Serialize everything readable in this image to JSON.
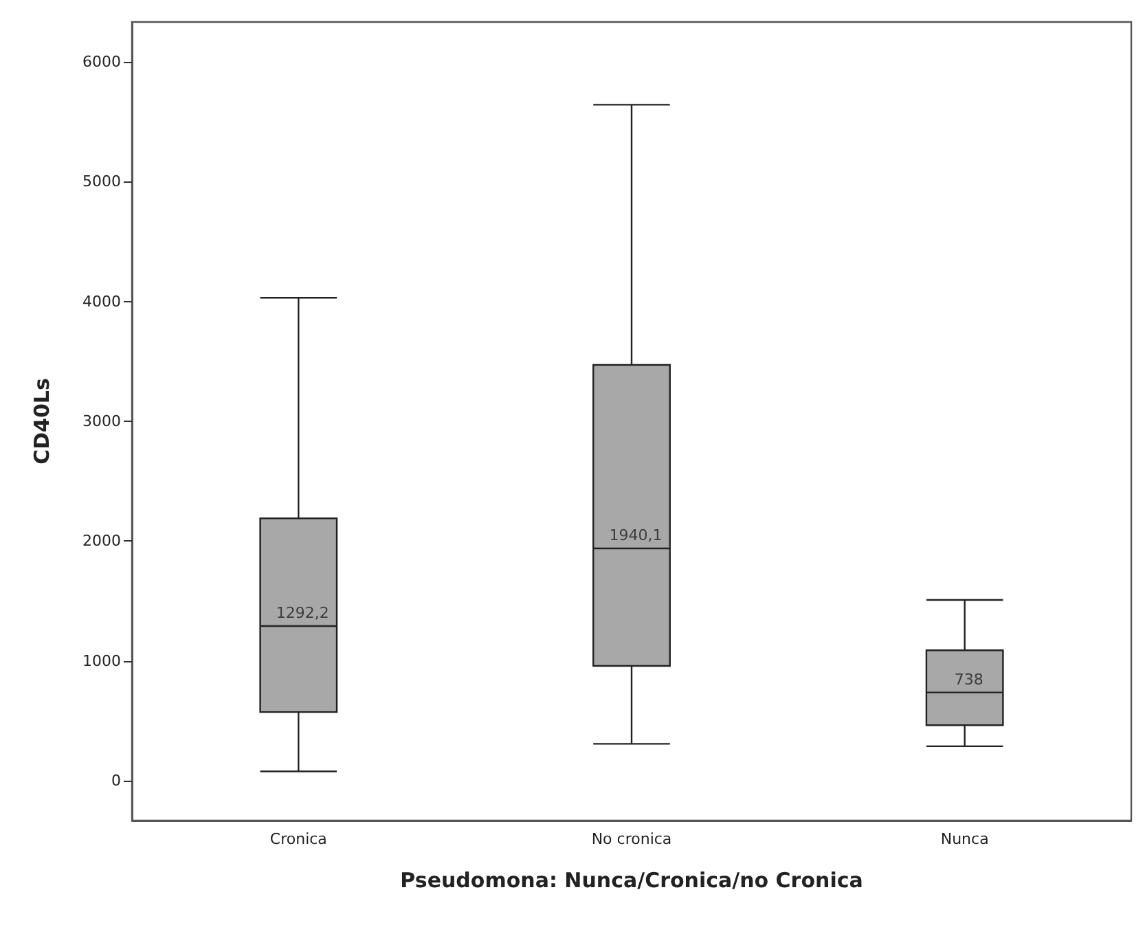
{
  "chart_data": {
    "type": "box",
    "xlabel": "Pseudomona: Nunca/Cronica/no Cronica",
    "ylabel": "CD40Ls",
    "categories": [
      "Cronica",
      "No cronica",
      "Nunca"
    ],
    "boxes": [
      {
        "low": 80,
        "q1": 575,
        "median": 1292.2,
        "q3": 2190,
        "high": 4030
      },
      {
        "low": 310,
        "q1": 960,
        "median": 1940.1,
        "q3": 3470,
        "high": 5640
      },
      {
        "low": 290,
        "q1": 465,
        "median": 738,
        "q3": 1090,
        "high": 1510
      }
    ],
    "color": "#a8a8a8",
    "ylim": [
      -330,
      6330
    ],
    "yticks": [
      0,
      1000,
      2000,
      3000,
      4000,
      5000,
      6000
    ],
    "grid": false,
    "annotations": [
      {
        "text": "1292,2",
        "x": "Cronica",
        "y": 1292.2
      },
      {
        "text": "1940,1",
        "x": "No cronica",
        "y": 1940.1
      },
      {
        "text": "738",
        "x": "Nunca",
        "y": 738
      }
    ]
  }
}
